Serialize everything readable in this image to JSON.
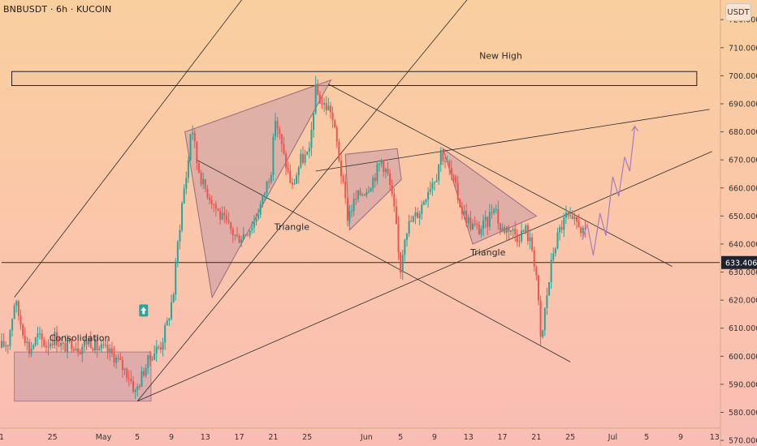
{
  "header": {
    "symbol": "BNBUSDT · 6h · KUCOIN",
    "currency": "USDT"
  },
  "colors": {
    "up": "#26a69a",
    "down": "#ef5350",
    "pattern_fill": "#c89aa6",
    "line": "#2b2b2b",
    "projection": "#a77cc0",
    "zone_fill": "#f5c7a0",
    "arrow_badge": "#26a69a"
  },
  "chart_data": {
    "type": "candlestick",
    "title": "BNBUSDT · 6h · KUCOIN",
    "price_scale": {
      "unit": "USDT",
      "ylim": [
        568,
        727
      ],
      "ticks": [
        720,
        710,
        700,
        690,
        680,
        670,
        660,
        650,
        640,
        630,
        620,
        610,
        600,
        590,
        580,
        570
      ],
      "tick_labels": [
        "720.000",
        "710.000",
        "700.000",
        "690.000",
        "680.000",
        "670.000",
        "660.000",
        "650.000",
        "640.000",
        "630.000",
        "620.000",
        "610.000",
        "600.000",
        "590.000",
        "580.000",
        "570.000"
      ],
      "current_price": 633.406,
      "current_price_label": "633.406"
    },
    "time_scale": {
      "unit": "day",
      "xlim": [
        -0.1,
        74.7
      ],
      "ticks": [
        {
          "day": 0,
          "label": "1"
        },
        {
          "day": 6,
          "label": "25"
        },
        {
          "day": 12,
          "label": "May"
        },
        {
          "day": 16,
          "label": "5"
        },
        {
          "day": 20,
          "label": "9"
        },
        {
          "day": 24,
          "label": "13"
        },
        {
          "day": 28,
          "label": "17"
        },
        {
          "day": 32,
          "label": "21"
        },
        {
          "day": 36,
          "label": "25"
        },
        {
          "day": 43,
          "label": "Jun"
        },
        {
          "day": 47,
          "label": "5"
        },
        {
          "day": 51,
          "label": "9"
        },
        {
          "day": 55,
          "label": "13"
        },
        {
          "day": 59,
          "label": "17"
        },
        {
          "day": 63,
          "label": "21"
        },
        {
          "day": 67,
          "label": "25"
        },
        {
          "day": 72,
          "label": "Jul"
        },
        {
          "day": 76,
          "label": "5"
        },
        {
          "day": 80,
          "label": "9"
        },
        {
          "day": 84,
          "label": "13"
        }
      ]
    },
    "price_path": [
      [
        0,
        603
      ],
      [
        1,
        605
      ],
      [
        1.8,
        620
      ],
      [
        2.5,
        612
      ],
      [
        3.5,
        602
      ],
      [
        4.5,
        607
      ],
      [
        5.5,
        604
      ],
      [
        6.5,
        607
      ],
      [
        7.5,
        603
      ],
      [
        8.5,
        605
      ],
      [
        9.5,
        603
      ],
      [
        10.5,
        606
      ],
      [
        11.5,
        603
      ],
      [
        12.5,
        602
      ],
      [
        13.5,
        600
      ],
      [
        14.5,
        596
      ],
      [
        15.3,
        593
      ],
      [
        16,
        587
      ],
      [
        17,
        595
      ],
      [
        18,
        601
      ],
      [
        19,
        604
      ],
      [
        19.8,
        612
      ],
      [
        20.5,
        623
      ],
      [
        21,
        640
      ],
      [
        21.6,
        657
      ],
      [
        22.2,
        668
      ],
      [
        22.6,
        684
      ],
      [
        23.2,
        670
      ],
      [
        24,
        661
      ],
      [
        25,
        656
      ],
      [
        26,
        650
      ],
      [
        27,
        646
      ],
      [
        28,
        642
      ],
      [
        29,
        644
      ],
      [
        30,
        648
      ],
      [
        31,
        656
      ],
      [
        32,
        667
      ],
      [
        32.5,
        685
      ],
      [
        33.5,
        671
      ],
      [
        34.5,
        660
      ],
      [
        35.5,
        670
      ],
      [
        36.5,
        672
      ],
      [
        37.2,
        695
      ],
      [
        38,
        690
      ],
      [
        39,
        688
      ],
      [
        39.8,
        675
      ],
      [
        40.5,
        660
      ],
      [
        41,
        650
      ],
      [
        41.8,
        655
      ],
      [
        42.5,
        658
      ],
      [
        43.3,
        660
      ],
      [
        44.3,
        665
      ],
      [
        45,
        670
      ],
      [
        45.8,
        664
      ],
      [
        46.6,
        650
      ],
      [
        47.2,
        630
      ],
      [
        47.8,
        645
      ],
      [
        48.5,
        648
      ],
      [
        49.5,
        652
      ],
      [
        50.5,
        660
      ],
      [
        51.5,
        665
      ],
      [
        52,
        673
      ],
      [
        52.8,
        668
      ],
      [
        53.5,
        662
      ],
      [
        54.5,
        652
      ],
      [
        55.5,
        647
      ],
      [
        56.5,
        645
      ],
      [
        57.5,
        648
      ],
      [
        58.3,
        655
      ],
      [
        59,
        645
      ],
      [
        60,
        646
      ],
      [
        61,
        643
      ],
      [
        62,
        645
      ],
      [
        62.8,
        638
      ],
      [
        63.3,
        628
      ],
      [
        63.8,
        603
      ],
      [
        64.3,
        618
      ],
      [
        64.8,
        628
      ],
      [
        65.2,
        637
      ],
      [
        66,
        645
      ],
      [
        66.8,
        650
      ],
      [
        67.5,
        647
      ],
      [
        68.2,
        648
      ],
      [
        68.8,
        643
      ]
    ],
    "patterns": [
      {
        "kind": "consolidation_zone",
        "label": "Consolidation",
        "days": [
          1.5,
          17.6
        ],
        "prices": [
          584,
          601.5
        ]
      },
      {
        "kind": "resistance_zone",
        "label": "New High",
        "days": [
          1.2,
          81.9
        ],
        "prices": [
          696.5,
          701.5
        ]
      },
      {
        "kind": "triangle",
        "label": "Triangle",
        "points": [
          [
            21.6,
            680
          ],
          [
            38.8,
            698.5
          ],
          [
            24.8,
            621
          ]
        ]
      },
      {
        "kind": "flag",
        "label": "",
        "points": [
          [
            40.5,
            672
          ],
          [
            46.6,
            674
          ],
          [
            47.1,
            663
          ],
          [
            41,
            645
          ]
        ]
      },
      {
        "kind": "triangle",
        "label": "Triangle",
        "points": [
          [
            52,
            674
          ],
          [
            63,
            650
          ],
          [
            55.5,
            640
          ]
        ]
      }
    ],
    "trendlines": [
      [
        [
          1.5,
          621
        ],
        [
          39.9,
          773
        ]
      ],
      [
        [
          16,
          584
        ],
        [
          55.9,
          731
        ]
      ],
      [
        [
          16,
          584
        ],
        [
          83.7,
          673
        ]
      ],
      [
        [
          23,
          670
        ],
        [
          67,
          598
        ]
      ],
      [
        [
          38.5,
          697
        ],
        [
          79,
          632
        ]
      ],
      [
        [
          37,
          666
        ],
        [
          83.4,
          688
        ]
      ],
      [
        [
          0,
          633.4
        ],
        [
          88,
          633.4
        ]
      ]
    ],
    "projection": [
      [
        68.4,
        641.5
      ],
      [
        69,
        647
      ],
      [
        69.7,
        636
      ],
      [
        70.5,
        651
      ],
      [
        71.2,
        643
      ],
      [
        72,
        664
      ],
      [
        72.7,
        657
      ],
      [
        73.4,
        671
      ],
      [
        74,
        666
      ],
      [
        74.6,
        682
      ]
    ]
  },
  "annotations": {
    "consolidation": "Consolidation",
    "triangle_left": "Triangle",
    "triangle_right": "Triangle",
    "new_high": "New High"
  }
}
